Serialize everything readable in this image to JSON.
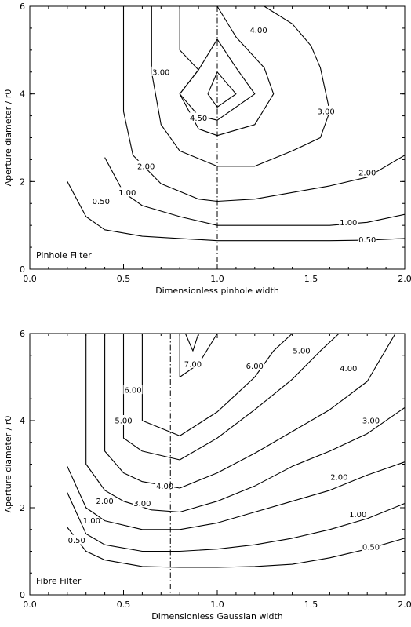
{
  "chart_data": [
    {
      "type": "contour",
      "title": "",
      "panel_label": "Pinhole Filter",
      "xlabel": "Dimensionless pinhole width",
      "ylabel": "Aperture diameter / r0",
      "xlim": [
        0,
        2
      ],
      "ylim": [
        0,
        6
      ],
      "xticks": [
        "0.0",
        "0.5",
        "1.0",
        "1.5",
        "2.0"
      ],
      "yticks": [
        "0",
        "2",
        "4",
        "6"
      ],
      "reference_line_x": 1.0,
      "contours": [
        {
          "level": "0.50",
          "points": [
            [
              0.2,
              2.0
            ],
            [
              0.3,
              1.2
            ],
            [
              0.4,
              0.9
            ],
            [
              0.6,
              0.75
            ],
            [
              0.8,
              0.7
            ],
            [
              1.0,
              0.65
            ],
            [
              1.2,
              0.65
            ],
            [
              1.4,
              0.65
            ],
            [
              1.6,
              0.65
            ],
            [
              1.8,
              0.66
            ],
            [
              2.0,
              0.7
            ]
          ],
          "label_at": [
            0.38,
            1.55
          ]
        },
        {
          "level": "1.00",
          "points": [
            [
              0.4,
              2.55
            ],
            [
              0.5,
              1.75
            ],
            [
              0.6,
              1.45
            ],
            [
              0.8,
              1.2
            ],
            [
              1.0,
              1.0
            ],
            [
              1.2,
              1.0
            ],
            [
              1.4,
              1.0
            ],
            [
              1.6,
              1.0
            ],
            [
              1.8,
              1.07
            ],
            [
              2.0,
              1.25
            ]
          ],
          "label_at": [
            0.52,
            1.75
          ]
        },
        {
          "level": "1.00",
          "points": [],
          "label_at": [
            1.7,
            1.07
          ]
        },
        {
          "level": "0.50",
          "points": [],
          "label_at": [
            1.8,
            0.67
          ]
        },
        {
          "level": "2.00",
          "points": [
            [
              0.5,
              6.0
            ],
            [
              0.5,
              3.6
            ],
            [
              0.55,
              2.6
            ],
            [
              0.7,
              1.95
            ],
            [
              0.9,
              1.6
            ],
            [
              1.0,
              1.55
            ],
            [
              1.2,
              1.6
            ],
            [
              1.4,
              1.75
            ],
            [
              1.6,
              1.9
            ],
            [
              1.8,
              2.1
            ],
            [
              2.0,
              2.6
            ]
          ],
          "label_at": [
            0.62,
            2.35
          ]
        },
        {
          "level": "2.00",
          "points": [],
          "label_at": [
            1.8,
            2.2
          ]
        },
        {
          "level": "3.00",
          "points": [
            [
              0.65,
              6.0
            ],
            [
              0.65,
              4.5
            ],
            [
              0.7,
              3.3
            ],
            [
              0.8,
              2.7
            ],
            [
              1.0,
              2.35
            ],
            [
              1.2,
              2.35
            ],
            [
              1.4,
              2.7
            ],
            [
              1.55,
              3.0
            ],
            [
              1.6,
              3.6
            ],
            [
              1.55,
              4.6
            ],
            [
              1.5,
              5.1
            ],
            [
              1.4,
              5.6
            ],
            [
              1.25,
              6.0
            ]
          ],
          "label_at": [
            0.7,
            4.5
          ]
        },
        {
          "level": "3.00",
          "points": [],
          "label_at": [
            1.58,
            3.6
          ]
        },
        {
          "level": "4.00",
          "points": [
            [
              0.8,
              6.0
            ],
            [
              0.8,
              5.0
            ],
            [
              0.9,
              4.55
            ],
            [
              0.8,
              4.0
            ],
            [
              0.9,
              3.2
            ],
            [
              1.0,
              3.05
            ],
            [
              1.2,
              3.3
            ],
            [
              1.3,
              4.0
            ],
            [
              1.25,
              4.6
            ],
            [
              1.1,
              5.3
            ],
            [
              1.0,
              6.0
            ]
          ],
          "label_at": [
            1.22,
            5.45
          ]
        },
        {
          "level": "4.50",
          "points": [
            [
              0.8,
              4.0
            ],
            [
              0.9,
              4.55
            ],
            [
              1.0,
              5.25
            ],
            [
              1.1,
              4.6
            ],
            [
              1.2,
              4.0
            ],
            [
              1.0,
              3.4
            ],
            [
              0.9,
              3.5
            ],
            [
              0.8,
              4.0
            ]
          ],
          "label_at": [
            0.9,
            3.45
          ]
        },
        {
          "level": "",
          "points": [
            [
              0.95,
              4.0
            ],
            [
              1.0,
              4.5
            ],
            [
              1.1,
              4.0
            ],
            [
              1.0,
              3.7
            ],
            [
              0.95,
              4.0
            ]
          ],
          "label_at": null
        }
      ]
    },
    {
      "type": "contour",
      "title": "",
      "panel_label": "Fibre Filter",
      "xlabel": "Dimensionless Gaussian width",
      "ylabel": "Aperture diameter / r0",
      "xlim": [
        0,
        2
      ],
      "ylim": [
        0,
        6
      ],
      "xticks": [
        "0.0",
        "0.5",
        "1.0",
        "1.5",
        "2.0"
      ],
      "yticks": [
        "0",
        "2",
        "4",
        "6"
      ],
      "reference_line_x": 0.75,
      "contours": [
        {
          "level": "0.50",
          "points": [
            [
              0.2,
              1.55
            ],
            [
              0.3,
              1.0
            ],
            [
              0.4,
              0.8
            ],
            [
              0.6,
              0.65
            ],
            [
              0.8,
              0.63
            ],
            [
              1.0,
              0.63
            ],
            [
              1.2,
              0.65
            ],
            [
              1.4,
              0.7
            ],
            [
              1.6,
              0.85
            ],
            [
              1.8,
              1.05
            ],
            [
              2.0,
              1.3
            ]
          ],
          "label_at": [
            0.25,
            1.25
          ]
        },
        {
          "level": "0.50",
          "points": [],
          "label_at": [
            1.82,
            1.1
          ]
        },
        {
          "level": "1.00",
          "points": [
            [
              0.2,
              2.35
            ],
            [
              0.3,
              1.4
            ],
            [
              0.4,
              1.15
            ],
            [
              0.6,
              1.0
            ],
            [
              0.8,
              1.0
            ],
            [
              1.0,
              1.05
            ],
            [
              1.2,
              1.15
            ],
            [
              1.4,
              1.3
            ],
            [
              1.6,
              1.5
            ],
            [
              1.8,
              1.75
            ],
            [
              2.0,
              2.1
            ]
          ],
          "label_at": [
            0.33,
            1.7
          ]
        },
        {
          "level": "1.00",
          "points": [],
          "label_at": [
            1.75,
            1.85
          ]
        },
        {
          "level": "2.00",
          "points": [
            [
              0.2,
              2.95
            ],
            [
              0.3,
              2.0
            ],
            [
              0.4,
              1.7
            ],
            [
              0.6,
              1.5
            ],
            [
              0.8,
              1.5
            ],
            [
              1.0,
              1.65
            ],
            [
              1.2,
              1.9
            ],
            [
              1.4,
              2.15
            ],
            [
              1.6,
              2.4
            ],
            [
              1.8,
              2.75
            ],
            [
              2.0,
              3.05
            ]
          ],
          "label_at": [
            0.4,
            2.15
          ]
        },
        {
          "level": "2.00",
          "points": [],
          "label_at": [
            1.65,
            2.7
          ]
        },
        {
          "level": "3.00",
          "points": [
            [
              0.3,
              6.0
            ],
            [
              0.3,
              3.0
            ],
            [
              0.4,
              2.4
            ],
            [
              0.5,
              2.15
            ],
            [
              0.65,
              1.95
            ],
            [
              0.8,
              1.9
            ],
            [
              1.0,
              2.15
            ],
            [
              1.2,
              2.5
            ],
            [
              1.4,
              2.95
            ],
            [
              1.6,
              3.3
            ],
            [
              1.8,
              3.7
            ],
            [
              2.0,
              4.3
            ]
          ],
          "label_at": [
            0.6,
            2.1
          ]
        },
        {
          "level": "3.00",
          "points": [],
          "label_at": [
            1.82,
            4.0
          ]
        },
        {
          "level": "4.00",
          "points": [
            [
              0.4,
              6.0
            ],
            [
              0.4,
              3.3
            ],
            [
              0.5,
              2.8
            ],
            [
              0.6,
              2.6
            ],
            [
              0.8,
              2.45
            ],
            [
              1.0,
              2.8
            ],
            [
              1.2,
              3.25
            ],
            [
              1.4,
              3.75
            ],
            [
              1.6,
              4.25
            ],
            [
              1.8,
              4.9
            ],
            [
              1.95,
              6.0
            ]
          ],
          "label_at": [
            0.72,
            2.5
          ]
        },
        {
          "level": "4.00",
          "points": [],
          "label_at": [
            1.7,
            5.2
          ]
        },
        {
          "level": "5.00",
          "points": [
            [
              0.5,
              6.0
            ],
            [
              0.5,
              3.6
            ],
            [
              0.6,
              3.3
            ],
            [
              0.8,
              3.1
            ],
            [
              1.0,
              3.6
            ],
            [
              1.2,
              4.25
            ],
            [
              1.4,
              4.95
            ],
            [
              1.55,
              5.6
            ],
            [
              1.65,
              6.0
            ]
          ],
          "label_at": [
            0.5,
            4.0
          ]
        },
        {
          "level": "5.00",
          "points": [],
          "label_at": [
            1.45,
            5.6
          ]
        },
        {
          "level": "6.00",
          "points": [
            [
              0.6,
              6.0
            ],
            [
              0.6,
              4.0
            ],
            [
              0.8,
              3.65
            ],
            [
              1.0,
              4.2
            ],
            [
              1.2,
              5.0
            ],
            [
              1.3,
              5.6
            ],
            [
              1.4,
              6.0
            ]
          ],
          "label_at": [
            0.55,
            4.7
          ]
        },
        {
          "level": "6.00",
          "points": [],
          "label_at": [
            1.2,
            5.25
          ]
        },
        {
          "level": "7.00",
          "points": [
            [
              0.8,
              6.0
            ],
            [
              0.8,
              5.0
            ],
            [
              0.9,
              5.3
            ],
            [
              1.0,
              6.0
            ]
          ],
          "label_at": [
            0.87,
            5.3
          ]
        },
        {
          "level": "",
          "points": [
            [
              0.83,
              6.0
            ],
            [
              0.87,
              5.6
            ],
            [
              0.9,
              6.0
            ]
          ],
          "label_at": null
        }
      ]
    }
  ]
}
